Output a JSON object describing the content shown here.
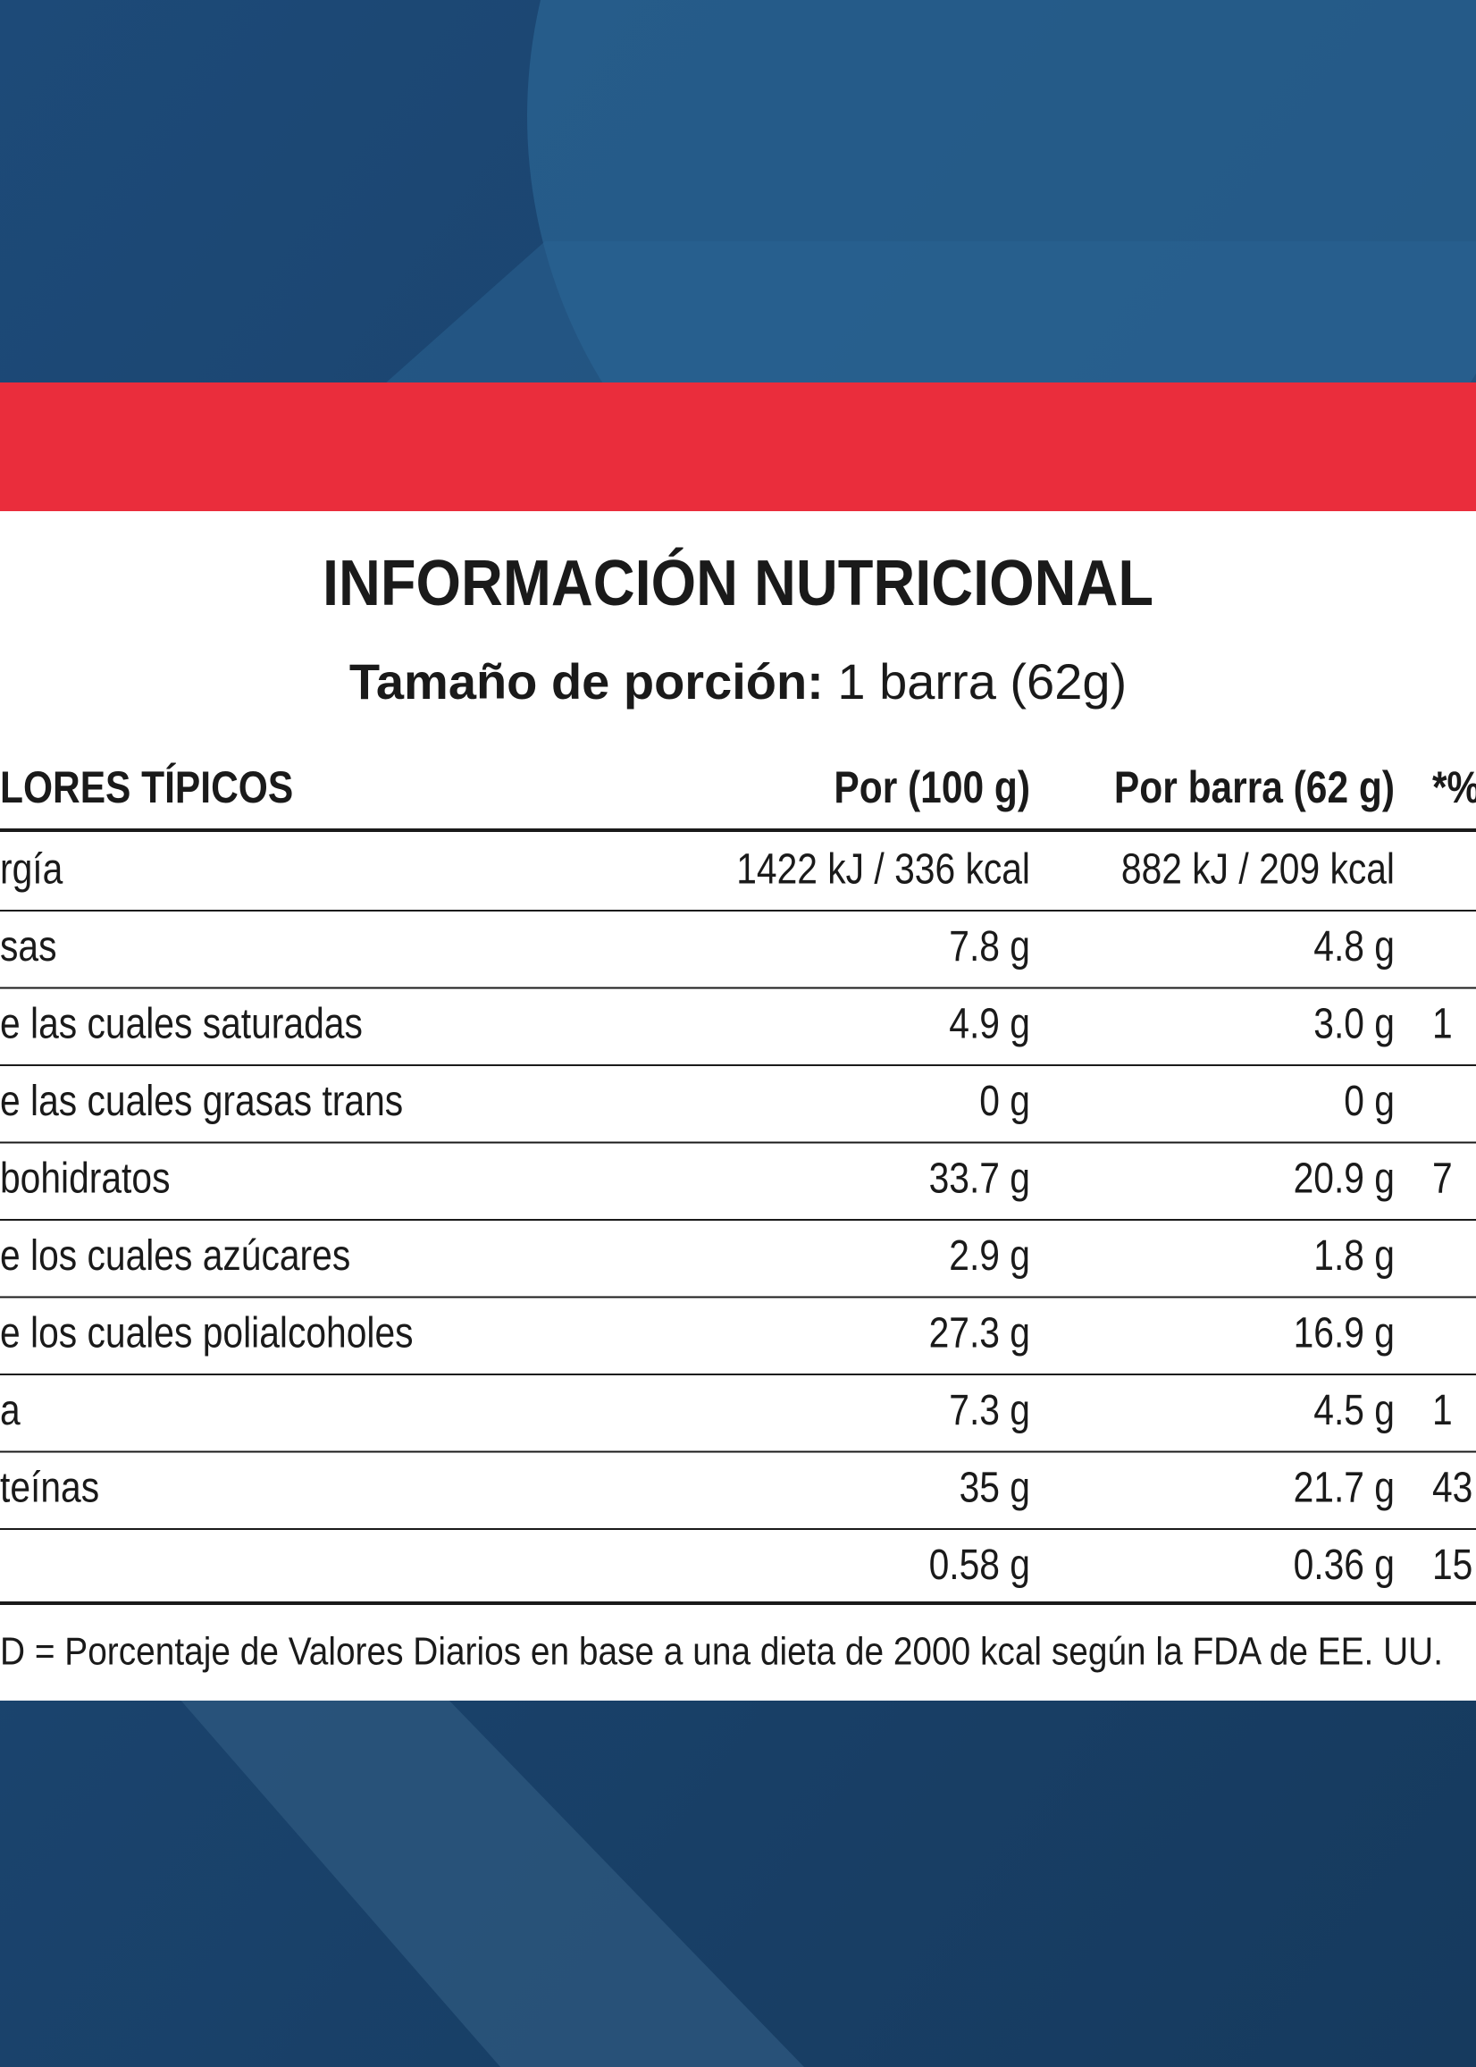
{
  "title": "INFORMACIÓN NUTRICIONAL",
  "serving": {
    "label": "Tamaño de porción:",
    "value": "1 barra (62g)"
  },
  "table": {
    "header": {
      "label": "LORES TÍPICOS",
      "per_100g": "Por (100 g)",
      "per_bar": "Por barra (62 g)",
      "dv": "*%"
    },
    "rows": [
      {
        "label": "rgía",
        "per_100g": "1422 kJ / 336 kcal",
        "per_bar": "882 kJ / 209 kcal"
      },
      {
        "label": "sas",
        "per_100g": "7.8 g",
        "per_bar": "4.8 g"
      },
      {
        "label": "e las cuales saturadas",
        "per_100g": "4.9 g",
        "per_bar": "3.0 g",
        "dv": "1"
      },
      {
        "label": "e las cuales grasas trans",
        "per_100g": "0 g",
        "per_bar": "0 g"
      },
      {
        "label": "bohidratos",
        "per_100g": "33.7 g",
        "per_bar": "20.9 g",
        "dv": "7"
      },
      {
        "label": "e los cuales azúcares",
        "per_100g": "2.9 g",
        "per_bar": "1.8 g"
      },
      {
        "label": "e los cuales polialcoholes",
        "per_100g": "27.3 g",
        "per_bar": "16.9 g"
      },
      {
        "label": "a",
        "per_100g": "7.3 g",
        "per_bar": "4.5 g",
        "dv": "1"
      },
      {
        "label": "teínas",
        "per_100g": "35 g",
        "per_bar": "21.7 g",
        "dv": "43"
      },
      {
        "per_100g": "0.58 g",
        "per_bar": "0.36 g",
        "dv": "15"
      }
    ]
  },
  "footnote": "D = Porcentaje de Valores Diarios en base a una dieta de 2000 kcal según la FDA de EE. UU."
}
